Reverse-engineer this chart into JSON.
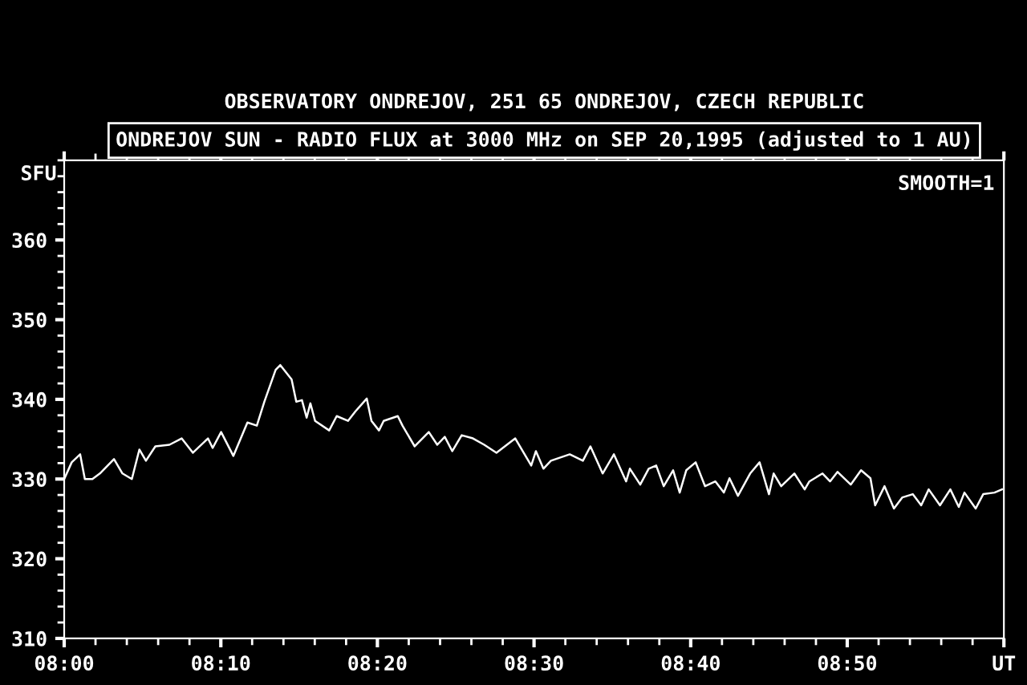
{
  "chart_data": {
    "type": "line",
    "title": "OBSERVATORY ONDREJOV, 251 65 ONDREJOV, CZECH REPUBLIC",
    "subtitle": "ONDREJOV SUN - RADIO FLUX at 3000 MHz on SEP 20,1995 (adjusted to 1 AU)",
    "ylabel": "SFU",
    "annotations": [
      "SMOOTH=1"
    ],
    "xlim": [
      8.0,
      9.0
    ],
    "xticks": [
      {
        "value": 8.0,
        "label": "08:00"
      },
      {
        "value": 8.1667,
        "label": "08:10"
      },
      {
        "value": 8.3333,
        "label": "08:20"
      },
      {
        "value": 8.5,
        "label": "08:30"
      },
      {
        "value": 8.6667,
        "label": "08:40"
      },
      {
        "value": 8.8333,
        "label": "08:50"
      },
      {
        "value": 9.0,
        "label": "UT"
      }
    ],
    "ylim": [
      310,
      370
    ],
    "yticks": [
      310,
      320,
      330,
      340,
      350,
      360
    ],
    "grid": false,
    "marker": "none",
    "line_style": "solid",
    "series": [
      {
        "color": "#ffffff",
        "x": [
          8.0,
          8.008,
          8.017,
          8.022,
          8.03,
          8.038,
          8.053,
          8.062,
          8.072,
          8.08,
          8.087,
          8.097,
          8.112,
          8.125,
          8.137,
          8.153,
          8.158,
          8.167,
          8.18,
          8.195,
          8.205,
          8.213,
          8.225,
          8.23,
          8.242,
          8.247,
          8.253,
          8.258,
          8.262,
          8.267,
          8.282,
          8.29,
          8.302,
          8.31,
          8.322,
          8.327,
          8.335,
          8.34,
          8.355,
          8.36,
          8.373,
          8.388,
          8.397,
          8.405,
          8.413,
          8.423,
          8.435,
          8.447,
          8.46,
          8.48,
          8.497,
          8.502,
          8.51,
          8.518,
          8.538,
          8.552,
          8.56,
          8.573,
          8.585,
          8.598,
          8.602,
          8.613,
          8.622,
          8.63,
          8.638,
          8.648,
          8.655,
          8.662,
          8.672,
          8.682,
          8.693,
          8.702,
          8.708,
          8.717,
          8.73,
          8.74,
          8.75,
          8.755,
          8.763,
          8.777,
          8.788,
          8.793,
          8.807,
          8.815,
          8.823,
          8.837,
          8.848,
          8.858,
          8.863,
          8.873,
          8.883,
          8.892,
          8.903,
          8.912,
          8.92,
          8.932,
          8.943,
          8.952,
          8.958,
          8.97,
          8.978,
          8.99,
          8.998
        ],
        "values": [
          330.0,
          332.1,
          333.1,
          330.0,
          330.0,
          330.7,
          332.5,
          330.7,
          330.0,
          333.7,
          332.3,
          334.1,
          334.3,
          335.1,
          333.3,
          335.1,
          333.9,
          335.9,
          332.9,
          337.1,
          336.7,
          339.7,
          343.7,
          344.3,
          342.5,
          339.7,
          339.9,
          337.7,
          339.5,
          337.3,
          336.1,
          337.9,
          337.3,
          338.5,
          340.1,
          337.3,
          336.1,
          337.3,
          337.9,
          336.7,
          334.1,
          335.9,
          334.3,
          335.3,
          333.5,
          335.5,
          335.1,
          334.3,
          333.3,
          335.1,
          331.7,
          333.5,
          331.3,
          332.3,
          333.1,
          332.3,
          334.1,
          330.7,
          333.1,
          329.7,
          331.3,
          329.3,
          331.3,
          331.7,
          329.1,
          331.1,
          328.3,
          331.1,
          332.1,
          329.1,
          329.7,
          328.3,
          330.1,
          327.9,
          330.7,
          332.1,
          328.1,
          330.7,
          329.1,
          330.7,
          328.7,
          329.7,
          330.7,
          329.7,
          330.9,
          329.3,
          331.1,
          330.1,
          326.7,
          329.1,
          326.3,
          327.7,
          328.1,
          326.7,
          328.7,
          326.7,
          328.7,
          326.5,
          328.3,
          326.3,
          328.1,
          328.3,
          328.7
        ]
      }
    ]
  }
}
